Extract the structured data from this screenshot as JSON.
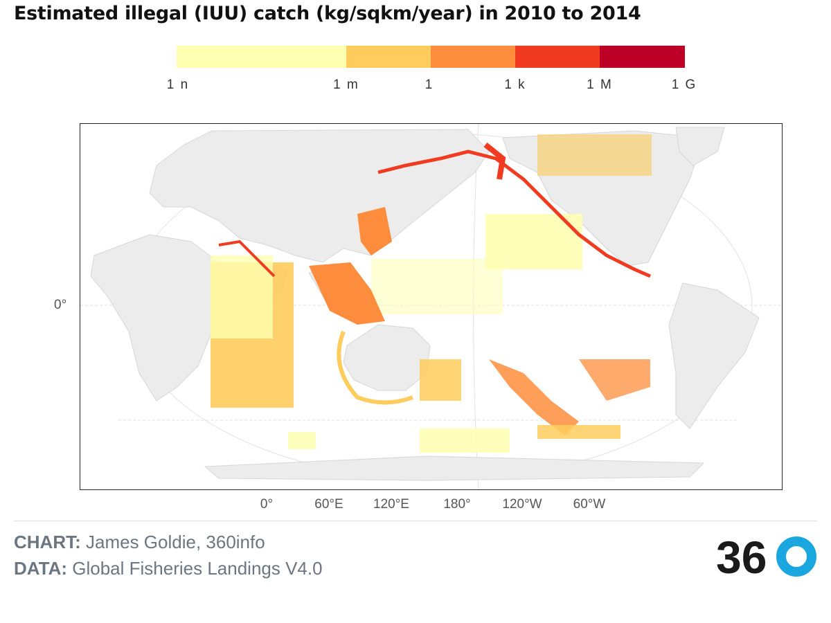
{
  "title": "Estimated illegal (IUU) catch (kg/sqkm/year) in 2010 to 2014",
  "legend": {
    "ticks": [
      "1 n",
      "1 m",
      "1",
      "1 k",
      "1 M",
      "1 G"
    ],
    "colors": [
      "#ffffb2",
      "#fecc5c",
      "#fd8d3c",
      "#f03b20",
      "#bd0026"
    ]
  },
  "y_axis_label": "0°",
  "x_axis_labels": [
    "0°",
    "60°E",
    "120°E",
    "180°",
    "120°W",
    "60°W"
  ],
  "credits": {
    "chart_key": "CHART:",
    "chart_value": "James Goldie, 360info",
    "data_key": "DATA:",
    "data_value": "Global Fisheries Landings V4.0"
  },
  "logo_text": "360",
  "colors": {
    "land": "#ececec",
    "land_border": "#d8d8d8",
    "frame": "#222222",
    "credit_text": "#6b7680",
    "logo_dark": "#1a1a1a",
    "logo_accent": "#1aa7e0"
  }
}
